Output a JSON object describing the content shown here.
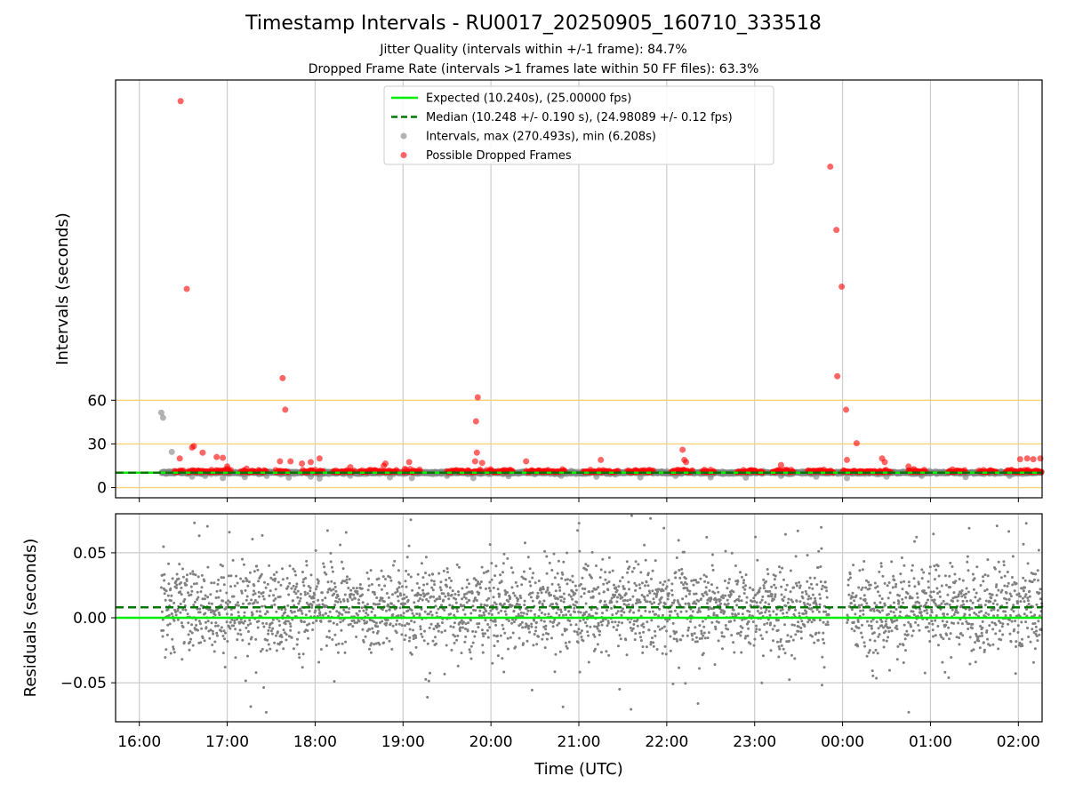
{
  "chart_data": [
    {
      "type": "scatter",
      "title": "Timestamp Intervals - RU0017_20250905_160710_333518",
      "subtitle_lines": [
        "Jitter Quality (intervals within +/-1 frame): 84.7%",
        "Dropped Frame Rate (intervals >1 frames late within 50 FF files): 63.3%"
      ],
      "ylabel": "Intervals (seconds)",
      "yticks": [
        0,
        30,
        60
      ],
      "ylim": [
        -7,
        280
      ],
      "xlim_hours": [
        15.73,
        26.27
      ],
      "reference_lines": [
        0,
        30,
        60
      ],
      "legend_position": "upper center",
      "series": [
        {
          "name": "Expected (10.240s), (25.00000 fps)",
          "kind": "line",
          "color": "#00ee00",
          "y": 10.24
        },
        {
          "name": "Median (10.248 +/- 0.190 s), (24.98089 +/- 0.12 fps)",
          "kind": "dashed-line",
          "color": "#007700",
          "y": 10.248
        },
        {
          "name": "Intervals, max (270.493s), min (6.208s)",
          "kind": "scatter",
          "color": "#808080",
          "points": [
            [
              16.25,
              51.5
            ],
            [
              16.27,
              48.0
            ],
            [
              16.37,
              24.5
            ],
            [
              16.6,
              7.5
            ],
            [
              16.75,
              8.0
            ],
            [
              16.95,
              6.5
            ],
            [
              17.2,
              7.2
            ],
            [
              17.45,
              8.0
            ],
            [
              17.7,
              6.8
            ],
            [
              17.95,
              7.5
            ],
            [
              18.05,
              6.2
            ],
            [
              18.4,
              8.2
            ],
            [
              18.85,
              7.0
            ],
            [
              19.1,
              6.5
            ],
            [
              19.5,
              8.0
            ],
            [
              19.8,
              6.5
            ],
            [
              20.2,
              7.8
            ],
            [
              20.8,
              8.0
            ],
            [
              21.2,
              7.5
            ],
            [
              21.7,
              7.0
            ],
            [
              22.1,
              8.0
            ],
            [
              22.5,
              7.0
            ],
            [
              22.9,
              6.8
            ],
            [
              23.3,
              8.0
            ],
            [
              23.7,
              7.5
            ],
            [
              24.05,
              6.5
            ],
            [
              24.5,
              7.5
            ],
            [
              24.9,
              8.0
            ],
            [
              25.4,
              7.2
            ],
            [
              25.9,
              8.0
            ]
          ]
        },
        {
          "name": "Possible Dropped Frames",
          "kind": "scatter",
          "color": "#ff0000",
          "points": [
            [
              16.47,
              265.5
            ],
            [
              16.54,
              136.5
            ],
            [
              17.63,
              75.2
            ],
            [
              17.66,
              53.5
            ],
            [
              19.85,
              62.0
            ],
            [
              19.83,
              45.5
            ],
            [
              19.84,
              24.0
            ],
            [
              23.86,
              220.5
            ],
            [
              23.93,
              177.0
            ],
            [
              23.99,
              138.0
            ],
            [
              23.94,
              76.5
            ],
            [
              24.04,
              53.5
            ],
            [
              24.16,
              30.5
            ],
            [
              16.6,
              27.5
            ],
            [
              16.62,
              28.5
            ],
            [
              16.46,
              20.0
            ],
            [
              16.72,
              24.0
            ],
            [
              16.88,
              21.0
            ],
            [
              16.95,
              20.5
            ],
            [
              17.0,
              14.5
            ],
            [
              17.22,
              13.0
            ],
            [
              17.6,
              18.0
            ],
            [
              17.72,
              18.0
            ],
            [
              17.85,
              16.5
            ],
            [
              17.95,
              17.5
            ],
            [
              18.05,
              20.0
            ],
            [
              18.4,
              14.0
            ],
            [
              18.78,
              15.0
            ],
            [
              18.8,
              16.5
            ],
            [
              19.07,
              17.5
            ],
            [
              19.82,
              18.0
            ],
            [
              19.9,
              17.0
            ],
            [
              20.4,
              18.0
            ],
            [
              21.25,
              19.0
            ],
            [
              22.18,
              26.0
            ],
            [
              22.2,
              19.0
            ],
            [
              22.22,
              17.5
            ],
            [
              23.3,
              15.5
            ],
            [
              24.05,
              19.0
            ],
            [
              24.45,
              20.0
            ],
            [
              24.48,
              17.5
            ],
            [
              24.75,
              14.5
            ],
            [
              25.25,
              12.5
            ],
            [
              26.02,
              19.5
            ],
            [
              26.1,
              20.0
            ],
            [
              26.17,
              19.5
            ],
            [
              26.25,
              20.0
            ]
          ]
        }
      ]
    },
    {
      "type": "scatter",
      "xlabel": "Time (UTC)",
      "ylabel": "Residuals (seconds)",
      "yticks": [
        -0.05,
        0.0,
        0.05
      ],
      "ytick_labels": [
        "−0.05",
        "0.00",
        "0.05"
      ],
      "ylim": [
        -0.08,
        0.08
      ],
      "xlim_hours": [
        15.73,
        26.27
      ],
      "xtick_labels": [
        "16:00",
        "17:00",
        "18:00",
        "19:00",
        "20:00",
        "21:00",
        "22:00",
        "23:00",
        "00:00",
        "01:00",
        "02:00"
      ],
      "grid": true,
      "series": [
        {
          "name": "Expected",
          "kind": "line",
          "color": "#00ee00",
          "y": 0.0
        },
        {
          "name": "Median",
          "kind": "dashed-line",
          "color": "#007700",
          "y": 0.008
        },
        {
          "name": "Residuals",
          "kind": "scatter",
          "color": "#808080",
          "range_hours": [
            16.25,
            26.27
          ],
          "gap_hours": [
            23.85,
            24.05
          ],
          "typical_spread": 0.02
        }
      ]
    }
  ]
}
